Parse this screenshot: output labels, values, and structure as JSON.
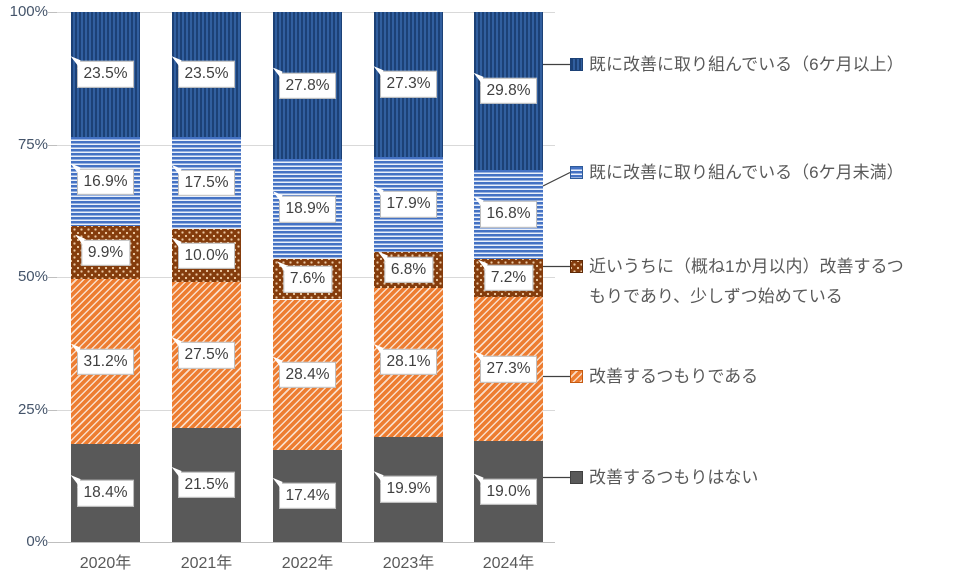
{
  "chart_data": {
    "type": "bar",
    "subtype": "100%-stacked-column",
    "title": "",
    "categories": [
      "2020年",
      "2021年",
      "2022年",
      "2023年",
      "2024年"
    ],
    "series": [
      {
        "name": "既に改善に取り組んでいる（6ケ月以上）",
        "legend_lines": [
          "既に改善に取り組んでいる（6ケ月以上）"
        ],
        "values": [
          23.5,
          23.5,
          27.8,
          27.3,
          29.8
        ],
        "pattern": "vertical-stripes",
        "fill": "#315f9f",
        "accent": "#1c4176",
        "border": "#1c4176"
      },
      {
        "name": "既に改善に取り組んでいる（6ケ月未満）",
        "legend_lines": [
          "既に改善に取り組んでいる（6ケ月未満）"
        ],
        "values": [
          16.9,
          17.5,
          18.9,
          17.9,
          16.8
        ],
        "pattern": "horizontal-stripes",
        "fill": "#4472c4",
        "accent": "#eaf0fa",
        "border": "#2e5b9a"
      },
      {
        "name": "近いうちに（概ね1か月以内）改善するつもりであり、少しずつ始めている",
        "legend_lines": [
          "近いうちに（概ね1か月以内）改善するつ",
          "もりであり、少しずつ始めている"
        ],
        "values": [
          9.9,
          10.0,
          7.6,
          6.8,
          7.2
        ],
        "pattern": "dots",
        "fill": "#843c0c",
        "accent": "#ecc9a3",
        "border": "#5e2a08"
      },
      {
        "name": "改善するつもりである",
        "legend_lines": [
          "改善するつもりである"
        ],
        "values": [
          31.2,
          27.5,
          28.4,
          28.1,
          27.3
        ],
        "pattern": "diagonal-stripes",
        "fill": "#ed7d31",
        "accent": "#f9ddc9",
        "border": "#c55a11"
      },
      {
        "name": "改善するつもりはない",
        "legend_lines": [
          "改善するつもりはない"
        ],
        "values": [
          18.4,
          21.5,
          17.4,
          19.9,
          19.0
        ],
        "pattern": "solid",
        "fill": "#595959",
        "accent": "#595959",
        "border": "#404040"
      }
    ],
    "value_labels": true,
    "value_label_format": "0.0%",
    "y_axis": {
      "min": 0,
      "max": 100,
      "ticks": [
        {
          "label": "0%",
          "value": 0
        },
        {
          "label": "25%",
          "value": 25
        },
        {
          "label": "50%",
          "value": 50
        },
        {
          "label": "75%",
          "value": 75
        },
        {
          "label": "100%",
          "value": 100
        }
      ]
    },
    "grid": true,
    "legend_position": "right",
    "colors": {
      "grid": "#d9d9d9",
      "axis_line": "#bfbfbf",
      "y_tick_label": "#44546a",
      "x_tick_label": "#595959",
      "legend_text": "#595959",
      "data_label_text": "#3f3f3f",
      "data_label_border": "#bdbdbd",
      "leader_line": "#404040",
      "background": "#ffffff"
    }
  }
}
